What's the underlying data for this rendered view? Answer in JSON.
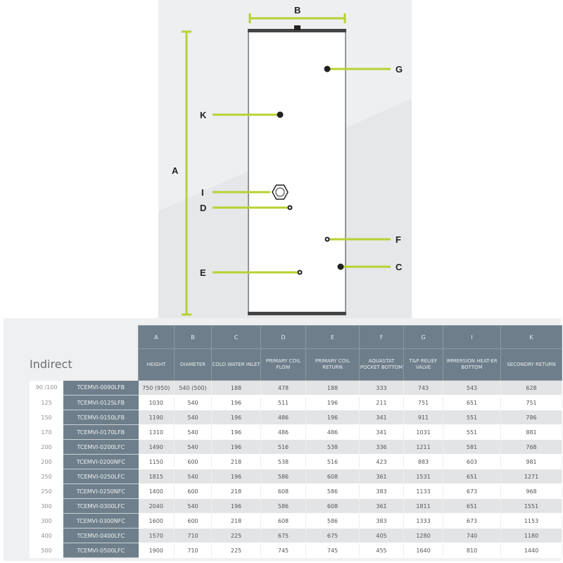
{
  "diagram": {
    "accent": "#b6d232",
    "labels": {
      "A": "A",
      "B": "B",
      "C": "C",
      "D": "D",
      "E": "E",
      "F": "F",
      "G": "G",
      "I": "I",
      "K": "K"
    }
  },
  "table": {
    "title": "Indirect",
    "letters": [
      "A",
      "B",
      "C",
      "D",
      "E",
      "F",
      "G",
      "I",
      "K"
    ],
    "headers": [
      "HEIGHT",
      "DIAMETER",
      "COLD WATER INLET",
      "PRIMARY COIL FLOW",
      "PRIMARY COIL RETURN",
      "AQUASTAT POCKET BOTTOM",
      "T&P RELIEF VALVE",
      "IMMERSION HEAT-ER BOTTOM",
      "SECONDRY RETURN"
    ],
    "rows": [
      {
        "vol": "90 /100",
        "model": "TCEMVI-0090LFB",
        "vals": [
          "750 (950)",
          "540 (500)",
          "188",
          "478",
          "188",
          "333",
          "743",
          "543",
          "628"
        ]
      },
      {
        "vol": "125",
        "model": "TCEMVI-0125LFB",
        "vals": [
          "1030",
          "540",
          "196",
          "511",
          "196",
          "211",
          "751",
          "651",
          "751"
        ]
      },
      {
        "vol": "150",
        "model": "TCEMVI-0150LFB",
        "vals": [
          "1190",
          "540",
          "196",
          "486",
          "196",
          "341",
          "911",
          "551",
          "786"
        ]
      },
      {
        "vol": "170",
        "model": "TCEMVI-0170LFB",
        "vals": [
          "1310",
          "540",
          "196",
          "486",
          "486",
          "341",
          "1031",
          "551",
          "881"
        ]
      },
      {
        "vol": "200",
        "model": "TCEMVI-0200LFC",
        "vals": [
          "1490",
          "540",
          "196",
          "516",
          "538",
          "336",
          "1211",
          "581",
          "768"
        ]
      },
      {
        "vol": "200",
        "model": "TCEMVI-0200NFC",
        "vals": [
          "1150",
          "600",
          "218",
          "538",
          "516",
          "423",
          "883",
          "603",
          "981"
        ]
      },
      {
        "vol": "250",
        "model": "TCEMVI-0250LFC",
        "vals": [
          "1815",
          "540",
          "196",
          "586",
          "608",
          "361",
          "1531",
          "651",
          "1271"
        ]
      },
      {
        "vol": "250",
        "model": "TCEMVI-0250NFC",
        "vals": [
          "1400",
          "600",
          "218",
          "608",
          "586",
          "383",
          "1133",
          "673",
          "968"
        ]
      },
      {
        "vol": "300",
        "model": "TCEMVI-0300LFC",
        "vals": [
          "2040",
          "540",
          "196",
          "586",
          "608",
          "361",
          "1811",
          "651",
          "1551"
        ]
      },
      {
        "vol": "300",
        "model": "TCEMVI-0300NFC",
        "vals": [
          "1600",
          "600",
          "218",
          "608",
          "586",
          "383",
          "1333",
          "673",
          "1153"
        ]
      },
      {
        "vol": "400",
        "model": "TCEMVI-0400LFC",
        "vals": [
          "1570",
          "710",
          "225",
          "675",
          "675",
          "405",
          "1280",
          "740",
          "1180"
        ]
      },
      {
        "vol": "500",
        "model": "TCEMVI-0500LFC",
        "vals": [
          "1900",
          "710",
          "225",
          "745",
          "745",
          "455",
          "1640",
          "810",
          "1440"
        ]
      }
    ]
  }
}
